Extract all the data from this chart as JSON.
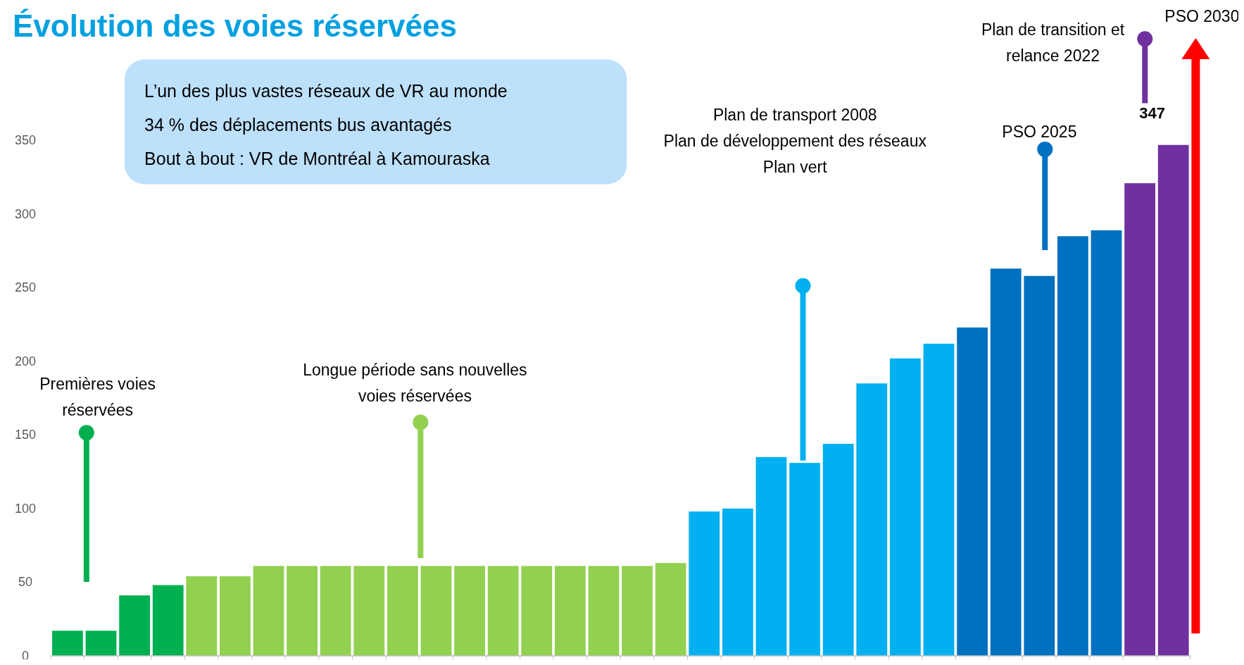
{
  "chart_data": {
    "type": "bar",
    "title": "Évolution des voies réservées",
    "categories": [
      null,
      null,
      null,
      null,
      null,
      null,
      null,
      null,
      null,
      null,
      null,
      null,
      null,
      null,
      null,
      null,
      null,
      null,
      null,
      null,
      null,
      null,
      null,
      null,
      null,
      null,
      null,
      null,
      null,
      null,
      null,
      null,
      null,
      null
    ],
    "values": [
      17,
      17,
      41,
      48,
      54,
      54,
      61,
      61,
      61,
      61,
      61,
      61,
      61,
      61,
      61,
      61,
      61,
      61,
      63,
      98,
      100,
      135,
      131,
      144,
      185,
      202,
      212,
      223,
      263,
      258,
      285,
      289,
      321,
      347
    ],
    "colors": [
      "#00b050",
      "#00b050",
      "#00b050",
      "#00b050",
      "#92d050",
      "#92d050",
      "#92d050",
      "#92d050",
      "#92d050",
      "#92d050",
      "#92d050",
      "#92d050",
      "#92d050",
      "#92d050",
      "#92d050",
      "#92d050",
      "#92d050",
      "#92d050",
      "#92d050",
      "#00b0f0",
      "#00b0f0",
      "#00b0f0",
      "#00b0f0",
      "#00b0f0",
      "#00b0f0",
      "#00b0f0",
      "#00b0f0",
      "#0070c0",
      "#0070c0",
      "#0070c0",
      "#0070c0",
      "#0070c0",
      "#7030a0",
      "#7030a0"
    ],
    "value_labels": [
      null,
      null,
      null,
      null,
      null,
      null,
      null,
      null,
      null,
      null,
      null,
      null,
      null,
      null,
      null,
      null,
      null,
      null,
      null,
      null,
      null,
      null,
      null,
      null,
      null,
      null,
      null,
      null,
      null,
      null,
      null,
      null,
      null,
      "347"
    ],
    "ylim": [
      0,
      350
    ],
    "yticks": [
      0,
      50,
      100,
      150,
      200,
      250,
      300,
      350
    ],
    "annotations": [
      "Premières voies\nréservées",
      "Longue période sans nouvelles\nvoies réservées",
      "Plan de transport 2008\nPlan de développement des réseaux\nPlan vert",
      "PSO 2025",
      "Plan de transition et\nrelance 2022",
      "PSO 2030",
      "L’un des plus vastes réseaux de VR au monde\n34 % des déplacements bus avantagés\nBout à bout : VR de Montréal à Kamouraska"
    ]
  }
}
